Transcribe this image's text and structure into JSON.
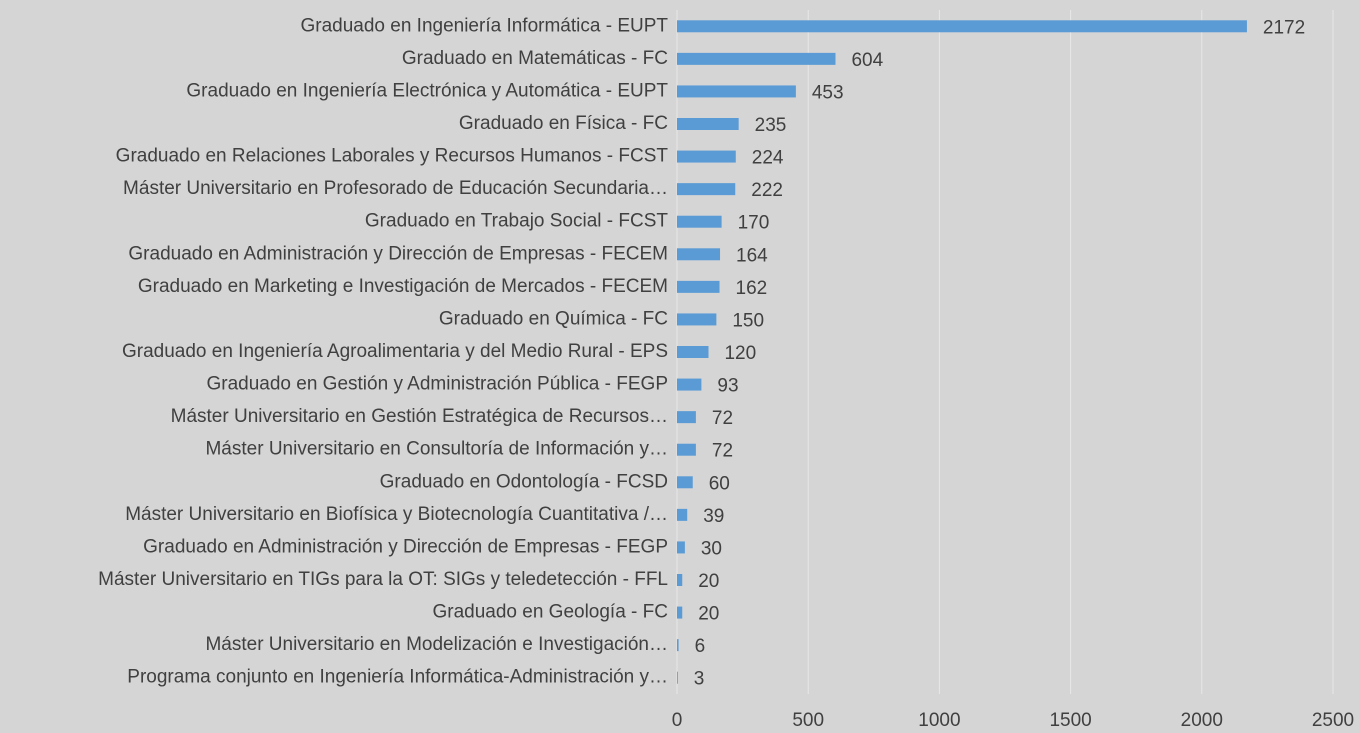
{
  "chart_data": {
    "type": "barh",
    "categories": [
      "Graduado en Ingeniería Informática - EUPT",
      "Graduado en Matemáticas - FC",
      "Graduado en Ingeniería Electrónica y Automática - EUPT",
      "Graduado en Física - FC",
      "Graduado en Relaciones Laborales y Recursos Humanos - FCST",
      "Máster Universitario en Profesorado de Educación Secundaria…",
      "Graduado en Trabajo Social - FCST",
      "Graduado en Administración y Dirección de Empresas - FECEM",
      "Graduado en Marketing e Investigación de Mercados - FECEM",
      "Graduado en Química - FC",
      "Graduado en Ingeniería Agroalimentaria y del Medio Rural - EPS",
      "Graduado en Gestión y Administración Pública - FEGP",
      "Máster Universitario en Gestión Estratégica de Recursos…",
      "Máster Universitario en Consultoría de Información y…",
      "Graduado en Odontología - FCSD",
      "Máster Universitario en Biofísica y Biotecnología Cuantitativa /…",
      "Graduado en Administración y Dirección de Empresas - FEGP",
      "Máster Universitario en TIGs para la OT: SIGs y teledetección - FFL",
      "Graduado en Geología - FC",
      "Máster Universitario en Modelización e Investigación…",
      "Programa conjunto en Ingeniería Informática-Administración y…"
    ],
    "values": [
      2172,
      604,
      453,
      235,
      224,
      222,
      170,
      164,
      162,
      150,
      120,
      93,
      72,
      72,
      60,
      39,
      30,
      20,
      20,
      6,
      3
    ],
    "color": "#5b9bd5",
    "xlim": [
      0,
      2500
    ],
    "xticks": [
      0,
      500,
      1000,
      1500,
      2000,
      2500
    ],
    "grid": true
  }
}
